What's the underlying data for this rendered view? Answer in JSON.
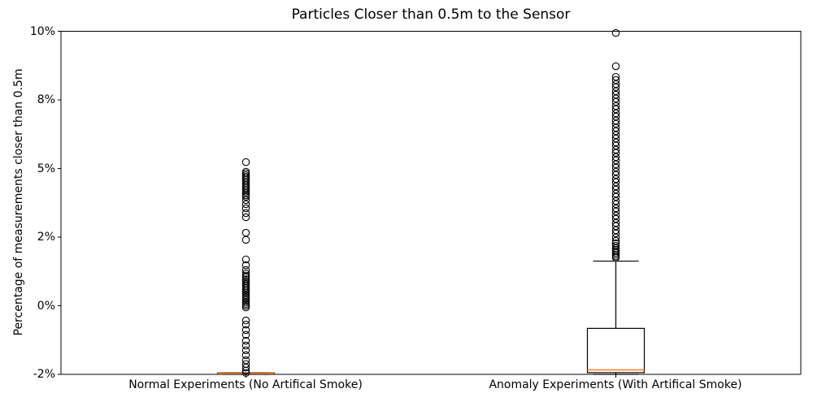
{
  "chart_data": {
    "type": "boxplot",
    "title": "Particles Closer than 0.5m to the Sensor",
    "ylabel": "Percentage of measurements closer than 0.5m",
    "xlabel": "",
    "categories": [
      "Normal Experiments (No Artifical Smoke)",
      "Anomaly Experiments (With Artifical Smoke)"
    ],
    "y_tick_labels": [
      "-2%",
      "0%",
      "2%",
      "5%",
      "8%",
      "10%"
    ],
    "y_tick_values": [
      -2,
      0,
      2,
      5,
      8,
      10
    ],
    "axis_note": "y ticks are evenly spaced on screen; values interpolate piecewise-linearly between ticks",
    "grid": false,
    "background_color": "#ffffff",
    "box_color": "#000000",
    "median_color": "#ff7f0e",
    "series": [
      {
        "name": "Normal Experiments (No Artifical Smoke)",
        "q1": -2.0,
        "median": -1.98,
        "q3": -1.96,
        "whisker_low": -2.0,
        "whisker_high": -1.96,
        "outliers": [
          5.28,
          4.86,
          4.79,
          4.71,
          4.64,
          4.57,
          4.5,
          4.43,
          4.35,
          4.28,
          4.21,
          4.14,
          4.07,
          3.99,
          3.92,
          3.83,
          3.76,
          3.62,
          3.44,
          3.26,
          3.05,
          2.87,
          2.19,
          1.92,
          1.35,
          1.18,
          1.04,
          0.94,
          0.88,
          0.83,
          0.77,
          0.72,
          0.67,
          0.62,
          0.57,
          0.52,
          0.47,
          0.42,
          0.37,
          0.31,
          0.26,
          0.21,
          0.16,
          0.1,
          0.05,
          0.0,
          -0.05,
          -0.43,
          -0.55,
          -0.71,
          -0.85,
          -1.02,
          -1.16,
          -1.3,
          -1.44,
          -1.59,
          -1.7,
          -1.8,
          -1.89,
          -1.96
        ]
      },
      {
        "name": "Anomaly Experiments (With Artifical Smoke)",
        "q1": -1.95,
        "median": -1.87,
        "q3": -0.66,
        "whisker_low": -2.0,
        "whisker_high": 1.3,
        "outliers": [
          9.95,
          8.98,
          8.67,
          8.58,
          8.46,
          8.37,
          8.25,
          8.15,
          8.04,
          7.91,
          7.73,
          7.59,
          7.41,
          7.27,
          7.09,
          6.95,
          6.78,
          6.63,
          6.46,
          6.31,
          6.14,
          6.0,
          5.82,
          5.68,
          5.5,
          5.36,
          5.18,
          5.04,
          4.86,
          4.72,
          4.54,
          4.4,
          4.22,
          4.08,
          3.9,
          3.76,
          3.58,
          3.44,
          3.26,
          3.12,
          2.94,
          2.8,
          2.62,
          2.48,
          2.3,
          2.16,
          1.99,
          1.89,
          1.82,
          1.75,
          1.68,
          1.63,
          1.59,
          1.54,
          1.49,
          1.44,
          1.4
        ]
      }
    ]
  }
}
